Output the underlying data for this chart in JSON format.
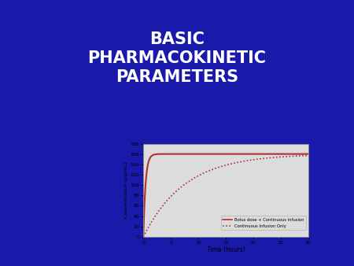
{
  "title_lines": [
    "BASIC",
    "PHARMACOKINETIC",
    "PARAMETERS"
  ],
  "title_color": "#FFFFFF",
  "title_fontsize": 15,
  "bg_color": "#1A1AAA",
  "chart_bg": "#DCDCDC",
  "chart_outer_bg": "#F0F0F0",
  "chart_border_color": "#888888",
  "line_color": "#B03030",
  "xlabel": "Time (hours)",
  "ylabel": "Concentration (µg/mL)",
  "xlim": [
    0,
    30
  ],
  "ylim": [
    0,
    180
  ],
  "xticks": [
    0,
    5,
    10,
    15,
    20,
    25,
    30
  ],
  "yticks": [
    0,
    20,
    40,
    60,
    80,
    100,
    120,
    140,
    160,
    180
  ],
  "legend_solid": "Bolus dose + Continuous Infusion",
  "legend_dashed": "Continuous Infusion Only",
  "bolus_plateau": 160,
  "infusion_plateau": 160,
  "bolus_tau": 0.4,
  "infusion_tau": 7.5
}
